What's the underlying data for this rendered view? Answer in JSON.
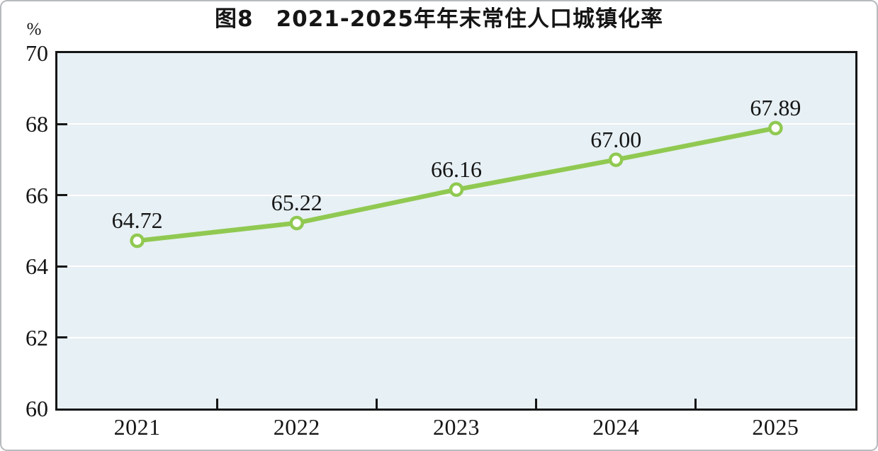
{
  "chart_data": {
    "type": "line",
    "title": "图8　2021-2025年年末常住人口城镇化率",
    "unit": "%",
    "categories": [
      "2021",
      "2022",
      "2023",
      "2024",
      "2025"
    ],
    "values": [
      64.72,
      65.22,
      66.16,
      67.0,
      67.89
    ],
    "point_labels": [
      "64.72",
      "65.22",
      "66.16",
      "67.00",
      "67.89"
    ],
    "ylim": [
      60,
      70
    ],
    "yticks": [
      60,
      62,
      64,
      66,
      68,
      70
    ],
    "ytick_labels": [
      "60",
      "62",
      "64",
      "66",
      "68",
      "70"
    ],
    "grid": "horizontal-white-lines",
    "legend": "none",
    "colors": {
      "line": "#90c951",
      "marker_fill": "#ffffff",
      "marker_stroke": "#90c951",
      "plot_background": "#e7f0f4",
      "gridline": "#ffffff",
      "axis_frame": "#151515",
      "text": "#151515"
    }
  }
}
